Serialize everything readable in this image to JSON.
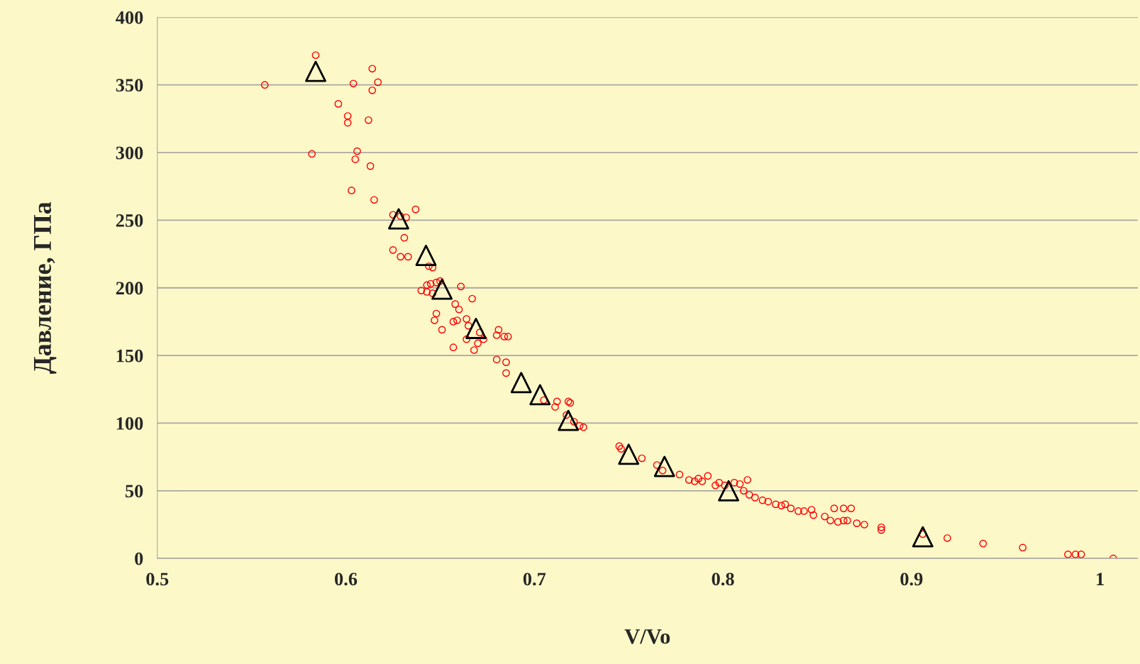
{
  "chart_data": {
    "type": "scatter",
    "xlabel": "V/Vo",
    "ylabel": "Давление, ГПа",
    "xlim": [
      0.5,
      1.02
    ],
    "xticks": [
      0.5,
      0.6,
      0.7,
      0.8,
      0.9,
      1
    ],
    "ylim": [
      0,
      400
    ],
    "yticks": [
      0,
      50,
      100,
      150,
      200,
      250,
      300,
      350,
      400
    ],
    "grid": "y",
    "series": [
      {
        "color": "#ff0000",
        "marker": "circle",
        "x": [
          0.557,
          0.584,
          0.582,
          0.596,
          0.601,
          0.601,
          0.604,
          0.614,
          0.614,
          0.617,
          0.612,
          0.606,
          0.605,
          0.613,
          0.603,
          0.615,
          0.625,
          0.629,
          0.632,
          0.637,
          0.631,
          0.625,
          0.629,
          0.633,
          0.644,
          0.646,
          0.64,
          0.643,
          0.645,
          0.648,
          0.65,
          0.643,
          0.646,
          0.661,
          0.667,
          0.658,
          0.66,
          0.648,
          0.647,
          0.657,
          0.659,
          0.664,
          0.665,
          0.651,
          0.664,
          0.673,
          0.67,
          0.668,
          0.657,
          0.671,
          0.681,
          0.68,
          0.684,
          0.686,
          0.68,
          0.685,
          0.685,
          0.705,
          0.712,
          0.718,
          0.719,
          0.711,
          0.717,
          0.721,
          0.724,
          0.726,
          0.745,
          0.746,
          0.757,
          0.765,
          0.768,
          0.777,
          0.782,
          0.785,
          0.787,
          0.789,
          0.792,
          0.796,
          0.798,
          0.801,
          0.806,
          0.809,
          0.813,
          0.811,
          0.814,
          0.817,
          0.821,
          0.824,
          0.828,
          0.831,
          0.833,
          0.836,
          0.84,
          0.843,
          0.847,
          0.848,
          0.854,
          0.857,
          0.861,
          0.864,
          0.866,
          0.859,
          0.864,
          0.868,
          0.871,
          0.875,
          0.884,
          0.884,
          0.906,
          0.919,
          0.938,
          0.959,
          0.983,
          0.987,
          0.99,
          1.007
        ],
        "values": [
          350,
          372,
          299,
          336,
          327,
          322,
          351,
          362,
          346,
          352,
          324,
          301,
          295,
          290,
          272,
          265,
          254,
          253,
          252,
          258,
          237,
          228,
          223,
          223,
          216,
          215,
          198,
          202,
          203,
          204,
          205,
          197,
          196,
          201,
          192,
          188,
          184,
          181,
          176,
          175,
          176,
          177,
          172,
          169,
          162,
          162,
          159,
          154,
          156,
          167,
          169,
          165,
          164,
          164,
          147,
          145,
          137,
          117,
          116,
          116,
          115,
          112,
          106,
          101,
          98,
          97,
          83,
          81,
          74,
          69,
          65,
          62,
          58,
          57,
          59,
          57,
          61,
          54,
          56,
          54,
          56,
          55,
          58,
          50,
          47,
          45,
          43,
          42,
          40,
          39,
          40,
          37,
          35,
          35,
          36,
          32,
          31,
          28,
          27,
          28,
          28,
          37,
          37,
          37,
          26,
          25,
          23,
          21,
          18,
          15,
          11,
          8,
          3,
          3,
          3,
          0
        ]
      },
      {
        "color": "#000000",
        "marker": "triangle",
        "x": [
          0.584,
          0.628,
          0.6425,
          0.651,
          0.669,
          0.693,
          0.703,
          0.718,
          0.75,
          0.769,
          0.803,
          0.906
        ],
        "values": [
          360,
          251,
          224,
          199,
          170,
          130,
          121,
          102,
          77,
          68,
          50,
          16
        ]
      }
    ]
  }
}
